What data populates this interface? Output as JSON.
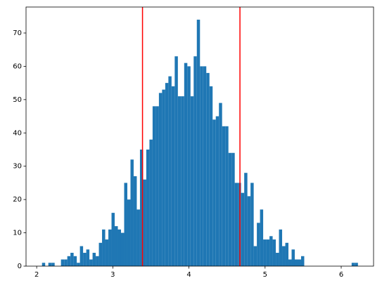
{
  "chart_data": {
    "type": "histogram",
    "bins": [
      2.07,
      2.1115,
      2.153,
      2.1945,
      2.236,
      2.2775,
      2.319,
      2.3605,
      2.402,
      2.4435,
      2.485,
      2.5265,
      2.568,
      2.6095,
      2.651,
      2.6925,
      2.734,
      2.7755,
      2.817,
      2.8585,
      2.9,
      2.9415,
      2.983,
      3.0245,
      3.066,
      3.1075,
      3.149,
      3.1905,
      3.232,
      3.2735,
      3.315,
      3.3565,
      3.398,
      3.4395,
      3.481,
      3.5225,
      3.564,
      3.6055,
      3.647,
      3.6885,
      3.73,
      3.7715,
      3.813,
      3.8545,
      3.896,
      3.9375,
      3.979,
      4.0205,
      4.062,
      4.1035,
      4.145,
      4.1865,
      4.228,
      4.2695,
      4.311,
      4.3525,
      4.394,
      4.4355,
      4.477,
      4.5185,
      4.56,
      4.6015,
      4.643,
      4.6845,
      4.726,
      4.7675,
      4.809,
      4.8505,
      4.892,
      4.9335,
      4.975,
      5.0165,
      5.058,
      5.0995,
      5.141,
      5.1825,
      5.224,
      5.2655,
      5.307,
      5.3485,
      5.39,
      5.4315,
      5.473,
      5.5145,
      5.556,
      5.5975,
      5.639,
      5.6805,
      5.722,
      5.7635,
      5.805,
      5.8465,
      5.888,
      5.9295,
      5.971,
      6.0125,
      6.054,
      6.0955,
      6.137,
      6.1785,
      6.22
    ],
    "values": [
      1,
      0,
      1,
      1,
      0,
      0,
      2,
      2,
      3,
      4,
      3,
      1,
      6,
      4,
      5,
      2,
      4,
      3,
      7,
      11,
      8,
      11,
      16,
      12,
      11,
      10,
      25,
      20,
      32,
      27,
      17,
      35,
      26,
      35,
      38,
      48,
      48,
      52,
      53,
      55,
      57,
      54,
      63,
      51,
      51,
      61,
      60,
      51,
      63,
      74,
      60,
      60,
      58,
      54,
      44,
      45,
      49,
      42,
      42,
      34,
      34,
      25,
      25,
      22,
      28,
      21,
      25,
      6,
      13,
      17,
      8,
      8,
      9,
      8,
      4,
      11,
      6,
      7,
      2,
      5,
      2,
      2,
      3,
      0,
      0,
      0,
      0,
      0,
      0,
      0,
      0,
      0,
      0,
      0,
      0,
      0,
      0,
      0,
      1,
      1
    ],
    "color": "#1f77b4",
    "vlines": [
      3.39,
      4.67
    ],
    "vline_color": "#ff0000",
    "xlim": [
      1.86,
      6.425
    ],
    "xticks": [
      2,
      3,
      4,
      5,
      6
    ],
    "ylim": [
      0,
      77.8
    ],
    "yticks": [
      0,
      10,
      20,
      30,
      40,
      50,
      60,
      70
    ]
  }
}
